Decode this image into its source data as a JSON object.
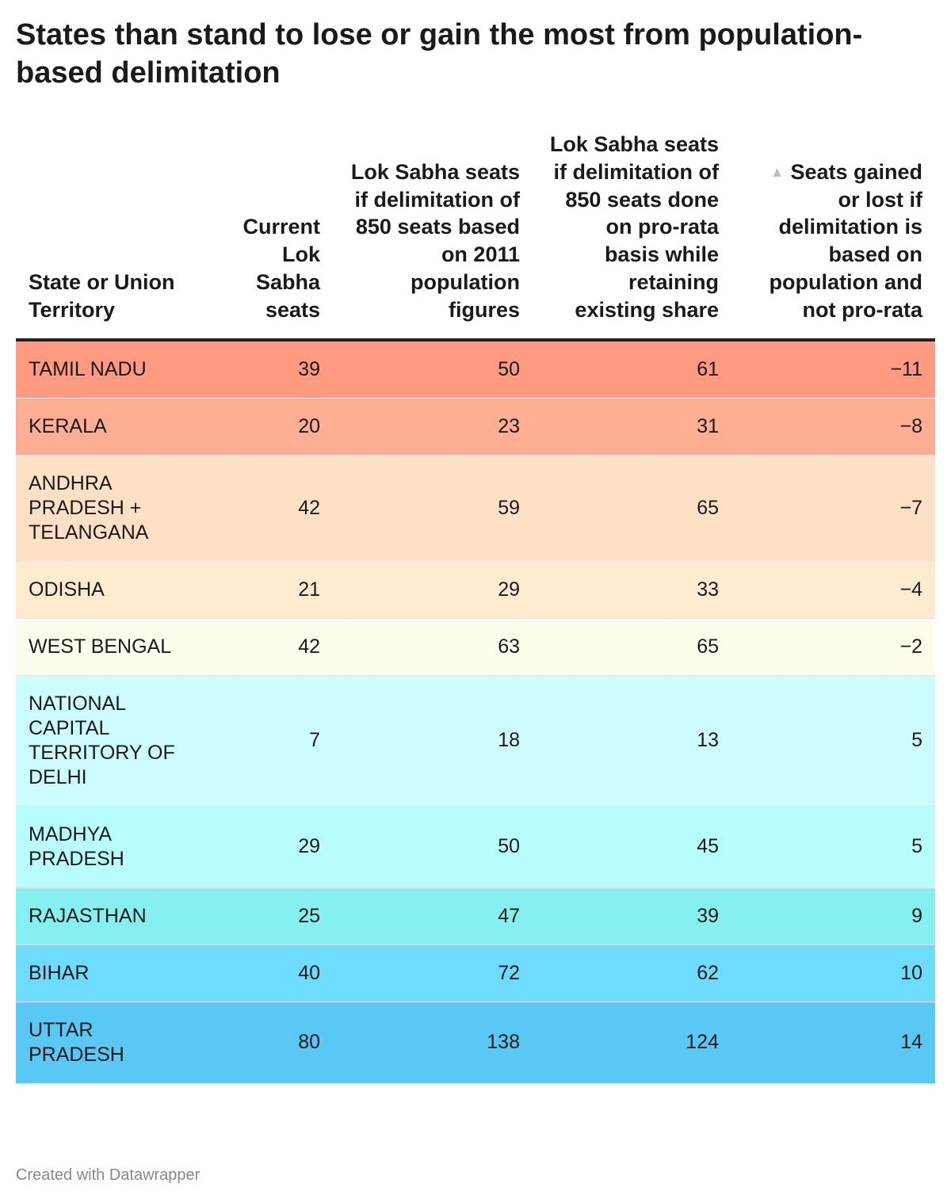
{
  "title": "States than stand to lose or gain the most from population-based delimitation",
  "footer": "Created with Datawrapper",
  "chart_data": {
    "type": "table",
    "columns": [
      "State or Union Territory",
      "Current Lok Sabha seats",
      "Lok Sabha seats if delimitation of 850 seats based on 2011 population figures",
      "Lok Sabha seats if delimitation of 850 seats done on pro-rata basis while retaining existing share",
      "Seats gained or lost if delimitation is based on population and not pro-rata"
    ],
    "sort_indicator": "▲",
    "rows": [
      {
        "state": "TAMIL NADU",
        "current": "39",
        "population_based": "50",
        "pro_rata": "61",
        "change": "−11",
        "color": "#fe9a7f"
      },
      {
        "state": "KERALA",
        "current": "20",
        "population_based": "23",
        "pro_rata": "31",
        "change": "−8",
        "color": "#feae93"
      },
      {
        "state": "ANDHRA PRADESH + TELANGANA",
        "current": "42",
        "population_based": "59",
        "pro_rata": "65",
        "change": "−7",
        "color": "#fee0c5"
      },
      {
        "state": "ODISHA",
        "current": "21",
        "population_based": "29",
        "pro_rata": "33",
        "change": "−4",
        "color": "#feebd0"
      },
      {
        "state": "WEST BENGAL",
        "current": "42",
        "population_based": "63",
        "pro_rata": "65",
        "change": "−2",
        "color": "#fefcec"
      },
      {
        "state": "NATIONAL CAPITAL TERRITORY OF DELHI",
        "current": "7",
        "population_based": "18",
        "pro_rata": "13",
        "change": "5",
        "color": "#ccfcfe"
      },
      {
        "state": "MADHYA PRADESH",
        "current": "29",
        "population_based": "50",
        "pro_rata": "45",
        "change": "5",
        "color": "#b8fefe"
      },
      {
        "state": "RAJASTHAN",
        "current": "25",
        "population_based": "47",
        "pro_rata": "39",
        "change": "9",
        "color": "#86f0f0"
      },
      {
        "state": "BIHAR",
        "current": "40",
        "population_based": "72",
        "pro_rata": "62",
        "change": "10",
        "color": "#6ddcfe"
      },
      {
        "state": "UTTAR PRADESH",
        "current": "80",
        "population_based": "138",
        "pro_rata": "124",
        "change": "14",
        "color": "#5ac8f5"
      }
    ]
  }
}
